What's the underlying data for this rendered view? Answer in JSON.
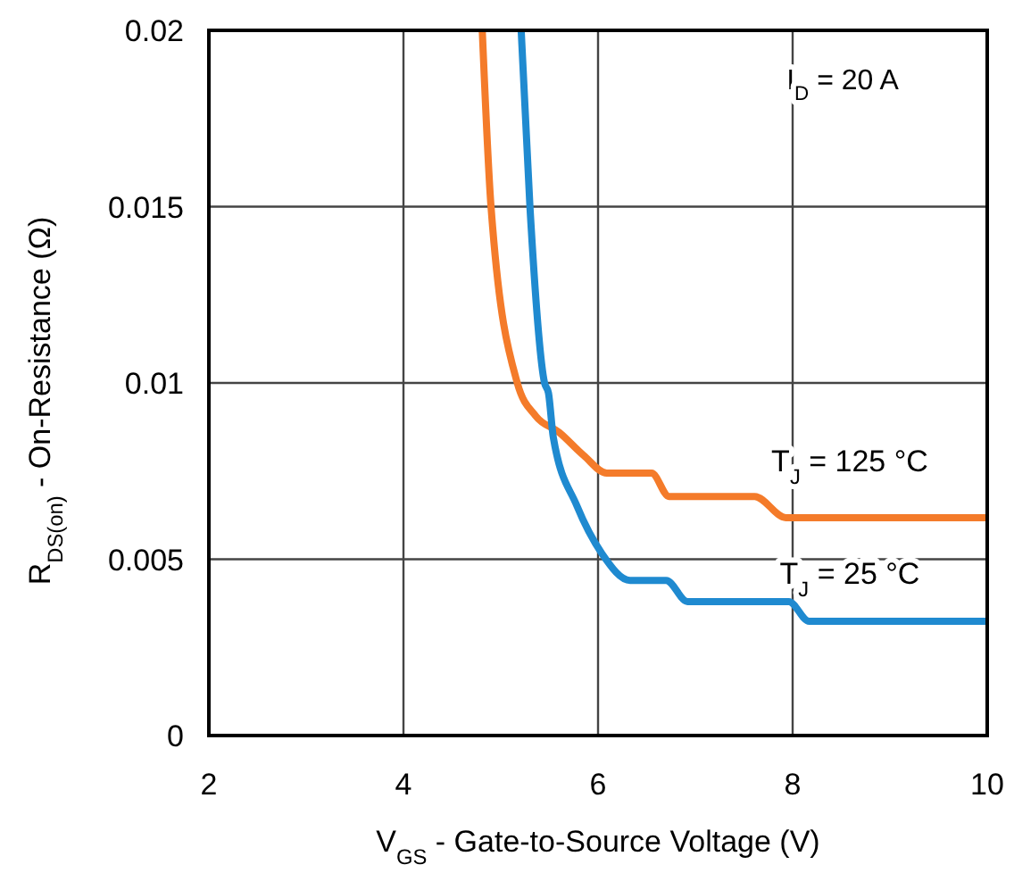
{
  "chart_data": {
    "type": "line",
    "xlabel": "V$_{GS}$ - Gate-to-Source Voltage (V)",
    "ylabel": "R$_{DS(on)}$ - On-Resistance (Ω)",
    "xlim": [
      2,
      10
    ],
    "xticks": [
      2,
      4,
      6,
      8,
      10
    ],
    "ylim": [
      0,
      0.02
    ],
    "yticks": [
      0,
      0.005,
      0.01,
      0.015,
      0.02
    ],
    "grid": true,
    "annotations": [
      "I$_{D}$ = 20 A"
    ],
    "series": [
      {
        "name": "T$_{J}$ = 125 °C",
        "color": "#f47b2a",
        "x": [
          4.81,
          4.9,
          5.17,
          5.36,
          5.6,
          5.85,
          6.09,
          6.55,
          6.73,
          7.61,
          7.93,
          10
        ],
        "values": [
          0.02,
          0.015,
          0.01,
          0.00906,
          0.0086,
          0.00795,
          0.00744,
          0.00744,
          0.00678,
          0.00678,
          0.00618,
          0.00618
        ]
      },
      {
        "name": "T$_{J}$ = 25 °C",
        "color": "#1f8ad0",
        "x": [
          5.21,
          5.3,
          5.45,
          5.49,
          5.54,
          5.78,
          6.04,
          6.33,
          6.7,
          6.92,
          7.96,
          8.17,
          10
        ],
        "values": [
          0.02,
          0.015,
          0.01,
          0.00972,
          0.00846,
          0.00653,
          0.00516,
          0.0044,
          0.0044,
          0.0038,
          0.0038,
          0.00324,
          0.00324
        ]
      }
    ]
  }
}
